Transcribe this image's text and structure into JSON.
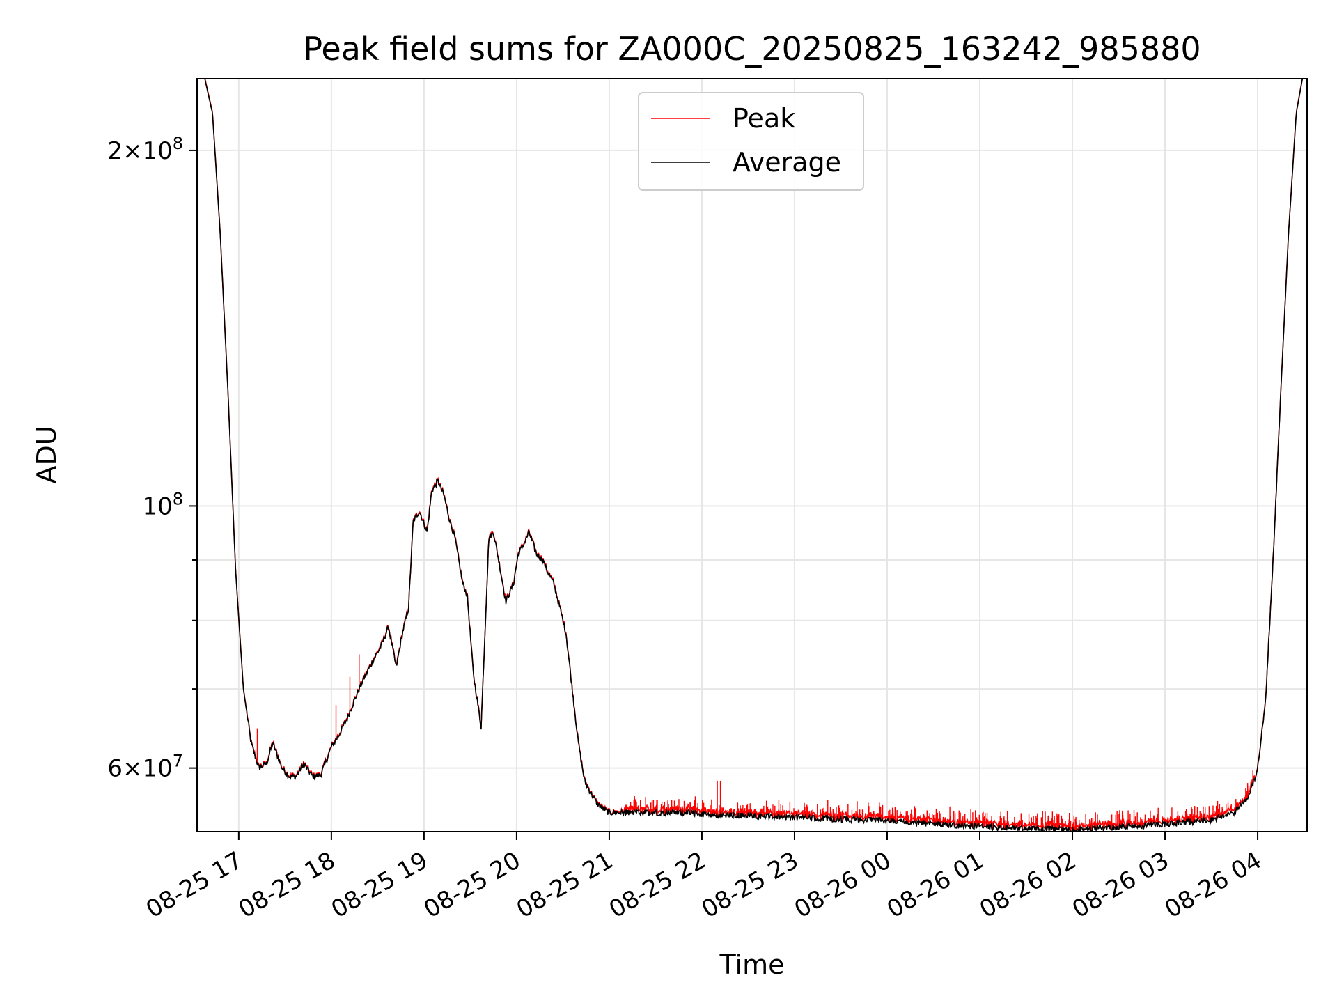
{
  "chart_data": {
    "type": "line",
    "title": "Peak field sums for ZA000C_20250825_163242_985880",
    "xlabel": "Time",
    "ylabel": "ADU",
    "yscale": "log",
    "ylim": [
      53000000,
      230000000
    ],
    "xlim": [
      "2025-08-25 16:33",
      "2025-08-26 04:32"
    ],
    "grid": true,
    "legend_position": "top-center",
    "x_ticks": [
      "08-25 17",
      "08-25 18",
      "08-25 19",
      "08-25 20",
      "08-25 21",
      "08-25 22",
      "08-25 23",
      "08-26 00",
      "08-26 01",
      "08-26 02",
      "08-26 03",
      "08-26 04"
    ],
    "y_ticks": [
      {
        "value": 60000000,
        "mantissa": "6",
        "exp": "7"
      },
      {
        "value": 100000000,
        "mantissa": "",
        "exp": "8"
      },
      {
        "value": 200000000,
        "mantissa": "2",
        "exp": "8"
      }
    ],
    "y_minor_ticks": [
      70000000,
      80000000,
      90000000
    ],
    "series": [
      {
        "name": "Peak",
        "color": "#ff0000"
      },
      {
        "name": "Average",
        "color": "#000000"
      }
    ],
    "average_profile": {
      "x": [
        "2025-08-25 16:33",
        "2025-08-25 16:38",
        "2025-08-25 16:43",
        "2025-08-25 16:48",
        "2025-08-25 16:53",
        "2025-08-25 16:58",
        "2025-08-25 17:03",
        "2025-08-25 17:08",
        "2025-08-25 17:13",
        "2025-08-25 17:18",
        "2025-08-25 17:22",
        "2025-08-25 17:28",
        "2025-08-25 17:33",
        "2025-08-25 17:37",
        "2025-08-25 17:42",
        "2025-08-25 17:48",
        "2025-08-25 17:53",
        "2025-08-25 17:57",
        "2025-08-25 18:00",
        "2025-08-25 18:05",
        "2025-08-25 18:10",
        "2025-08-25 18:14",
        "2025-08-25 18:20",
        "2025-08-25 18:27",
        "2025-08-25 18:32",
        "2025-08-25 18:37",
        "2025-08-25 18:42",
        "2025-08-25 18:46",
        "2025-08-25 18:50",
        "2025-08-25 18:53",
        "2025-08-25 18:57",
        "2025-08-25 19:02",
        "2025-08-25 19:05",
        "2025-08-25 19:09",
        "2025-08-25 19:13",
        "2025-08-25 19:16",
        "2025-08-25 19:20",
        "2025-08-25 19:25",
        "2025-08-25 19:28",
        "2025-08-25 19:32",
        "2025-08-25 19:37",
        "2025-08-25 19:42",
        "2025-08-25 19:45",
        "2025-08-25 19:49",
        "2025-08-25 19:53",
        "2025-08-25 19:58",
        "2025-08-25 20:01",
        "2025-08-25 20:05",
        "2025-08-25 20:08",
        "2025-08-25 20:13",
        "2025-08-25 20:17",
        "2025-08-25 20:20",
        "2025-08-25 20:24",
        "2025-08-25 20:28",
        "2025-08-25 20:32",
        "2025-08-25 20:36",
        "2025-08-25 20:40",
        "2025-08-25 20:44",
        "2025-08-25 20:47",
        "2025-08-25 20:52",
        "2025-08-25 20:57",
        "2025-08-25 21:00",
        "2025-08-25 21:03",
        "2025-08-25 21:10",
        "2025-08-25 21:30",
        "2025-08-25 21:50",
        "2025-08-25 22:10",
        "2025-08-25 22:30",
        "2025-08-25 23:00",
        "2025-08-25 23:30",
        "2025-08-26 00:00",
        "2025-08-26 00:30",
        "2025-08-26 01:00",
        "2025-08-26 01:30",
        "2025-08-26 02:00",
        "2025-08-26 02:30",
        "2025-08-26 03:00",
        "2025-08-26 03:30",
        "2025-08-26 03:45",
        "2025-08-26 03:55",
        "2025-08-26 04:00",
        "2025-08-26 04:05",
        "2025-08-26 04:10",
        "2025-08-26 04:15",
        "2025-08-26 04:20",
        "2025-08-26 04:25",
        "2025-08-26 04:29",
        "2025-08-26 04:32"
      ],
      "values": [
        230000000,
        230000000,
        215000000,
        170000000,
        125000000,
        88000000,
        70000000,
        63000000,
        60000000,
        60500000,
        63000000,
        60000000,
        59000000,
        59000000,
        60500000,
        59000000,
        59200000,
        61000000,
        62500000,
        64000000,
        66000000,
        68000000,
        71000000,
        74000000,
        76000000,
        79000000,
        73000000,
        78000000,
        82000000,
        97000000,
        99000000,
        95000000,
        103000000,
        105000000,
        102000000,
        98000000,
        94000000,
        86000000,
        84000000,
        72000000,
        65000000,
        94000000,
        95000000,
        89000000,
        83000000,
        86000000,
        91000000,
        93000000,
        95000000,
        91000000,
        90000000,
        88000000,
        86000000,
        82000000,
        78000000,
        70000000,
        63000000,
        58500000,
        57500000,
        56000000,
        55300000,
        55000000,
        55000000,
        55000000,
        55000000,
        55000000,
        54700000,
        54700000,
        54500000,
        54300000,
        54200000,
        53800000,
        53500000,
        53300000,
        53200000,
        53500000,
        53800000,
        54200000,
        55000000,
        57000000,
        60000000,
        68000000,
        90000000,
        125000000,
        170000000,
        215000000,
        230000000,
        230000000
      ]
    }
  }
}
